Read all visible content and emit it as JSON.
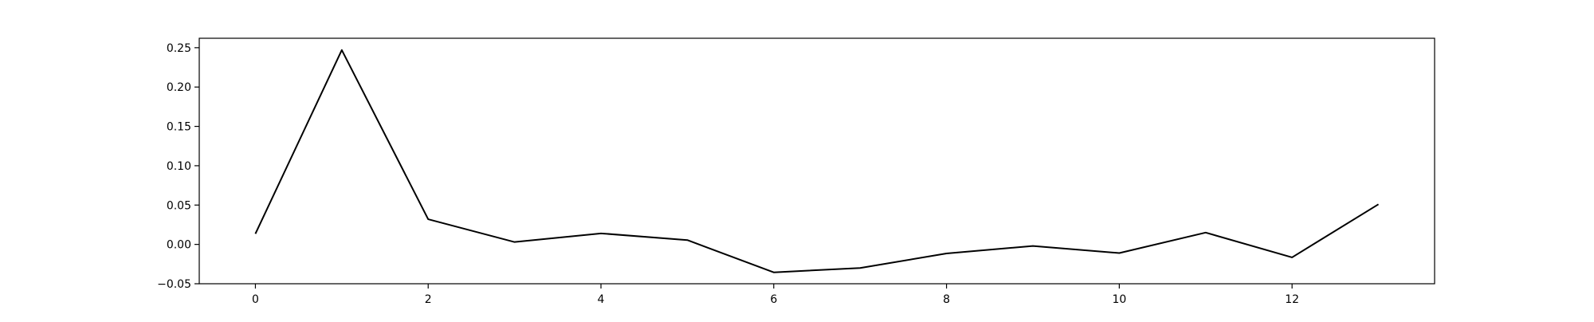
{
  "chart_data": {
    "type": "line",
    "title": "",
    "xlabel": "",
    "ylabel": "",
    "x": [
      0,
      1,
      2,
      3,
      4,
      5,
      6,
      7,
      8,
      9,
      10,
      11,
      12,
      13
    ],
    "series": [
      {
        "values": [
          0.0135,
          0.247,
          0.032,
          0.003,
          0.014,
          0.0055,
          -0.0355,
          -0.03,
          -0.0115,
          -0.002,
          -0.011,
          0.015,
          -0.0165,
          0.051
        ],
        "color": "#000000"
      }
    ],
    "xlim": [
      -0.65,
      13.65
    ],
    "ylim": [
      -0.05,
      0.262
    ],
    "xticks": [
      0,
      2,
      4,
      6,
      8,
      10,
      12
    ],
    "xtick_labels": [
      "0",
      "2",
      "4",
      "6",
      "8",
      "10",
      "12"
    ],
    "yticks": [
      -0.05,
      0.0,
      0.05,
      0.1,
      0.15,
      0.2,
      0.25
    ],
    "ytick_labels": [
      "−0.05",
      "0.00",
      "0.05",
      "0.10",
      "0.15",
      "0.20",
      "0.25"
    ],
    "grid": false,
    "legend": "none"
  }
}
